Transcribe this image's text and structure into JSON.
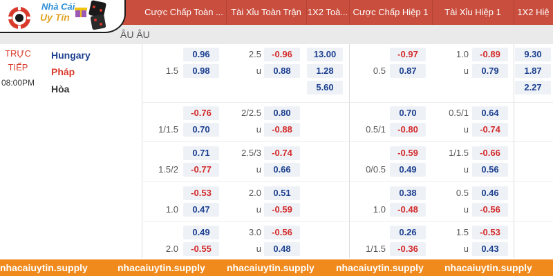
{
  "header": {
    "columns": [
      {
        "label": "Cược Chấp Toàn ..."
      },
      {
        "label": "Tài Xỉu Toàn Trận"
      },
      {
        "label": "1X2 Toà..."
      },
      {
        "label": "Cược Chấp Hiệp 1"
      },
      {
        "label": "Tài Xỉu Hiệp 1"
      },
      {
        "label": "1X2 Hiệ"
      }
    ]
  },
  "logo": {
    "line1": "Nhà Cái",
    "line2": "Uy Tín"
  },
  "league": {
    "label": "ÂU ÂU"
  },
  "match": {
    "status": "TRỰC",
    "status2": "TIẾP",
    "time": "08:00PM",
    "home": "Hungary",
    "away": "Pháp",
    "draw": "Hòa"
  },
  "colors": {
    "header": "#c94e3e",
    "negative": "#d42a2a",
    "positive": "#1c3f8f",
    "footer": "#f18a1c"
  },
  "rows": [
    {
      "ah_line": "1.5",
      "ah_home": "0.96",
      "ah_away": "0.98",
      "ou_line": "2.5",
      "ou_u": "u",
      "ou_over": "-0.96",
      "ou_under": "0.88",
      "x12_home": "13.00",
      "x12_away": "1.28",
      "x12_draw": "5.60",
      "h1_ah_line": "0.5",
      "h1_ah_home": "-0.97",
      "h1_ah_away": "0.87",
      "h1_ou_line": "1.0",
      "h1_ou_u": "u",
      "h1_ou_over": "-0.89",
      "h1_ou_under": "0.79",
      "h1_x12_home": "9.30",
      "h1_x12_away": "1.87",
      "h1_x12_draw": "2.27"
    },
    {
      "ah_line": "1/1.5",
      "ah_home": "-0.76",
      "ah_away": "0.70",
      "ou_line": "2/2.5",
      "ou_u": "u",
      "ou_over": "0.80",
      "ou_under": "-0.88",
      "h1_ah_line": "0.5/1",
      "h1_ah_home": "0.70",
      "h1_ah_away": "-0.80",
      "h1_ou_line": "0.5/1",
      "h1_ou_u": "u",
      "h1_ou_over": "0.64",
      "h1_ou_under": "-0.74"
    },
    {
      "ah_line": "1.5/2",
      "ah_home": "0.71",
      "ah_away": "-0.77",
      "ou_line": "2.5/3",
      "ou_u": "u",
      "ou_over": "-0.74",
      "ou_under": "0.66",
      "h1_ah_line": "0/0.5",
      "h1_ah_home": "-0.59",
      "h1_ah_away": "0.49",
      "h1_ou_line": "1/1.5",
      "h1_ou_u": "u",
      "h1_ou_over": "-0.66",
      "h1_ou_under": "0.56"
    },
    {
      "ah_line": "1.0",
      "ah_home": "-0.53",
      "ah_away": "0.47",
      "ou_line": "2.0",
      "ou_u": "u",
      "ou_over": "0.51",
      "ou_under": "-0.59",
      "h1_ah_line": "1.0",
      "h1_ah_home": "0.38",
      "h1_ah_away": "-0.48",
      "h1_ou_line": "0.5",
      "h1_ou_u": "u",
      "h1_ou_over": "0.46",
      "h1_ou_under": "-0.56"
    },
    {
      "ah_line": "2.0",
      "ah_home": "0.49",
      "ah_away": "-0.55",
      "ou_line": "3.0",
      "ou_u": "u",
      "ou_over": "-0.56",
      "ou_under": "0.48",
      "h1_ah_line": "1/1.5",
      "h1_ah_home": "0.26",
      "h1_ah_away": "-0.36",
      "h1_ou_line": "1.5",
      "h1_ou_u": "u",
      "h1_ou_over": "-0.53",
      "h1_ou_under": "0.43"
    }
  ],
  "footer": {
    "watermarks": [
      "nhacaiuytin.supply",
      "nhacaiuytin.supply",
      "nhacaiuytin.supply",
      "nhacaiuytin.supply",
      "nhacaiuytin.supply"
    ]
  }
}
